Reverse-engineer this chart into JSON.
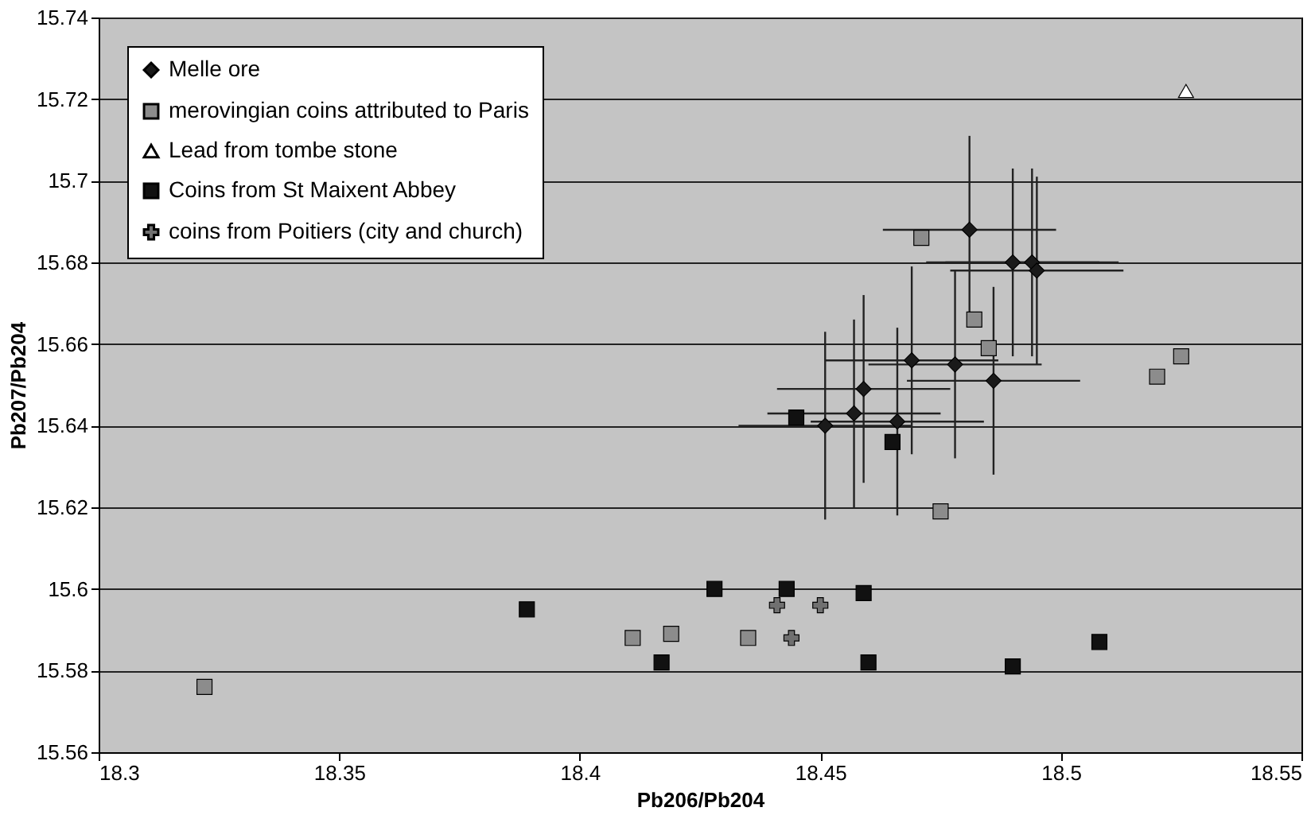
{
  "chart_data": {
    "type": "scatter",
    "xlabel": "Pb206/Pb204",
    "ylabel": "Pb207/Pb204",
    "xlim": [
      18.3,
      18.55
    ],
    "xticks": [
      18.3,
      18.35,
      18.4,
      18.45,
      18.5,
      18.55
    ],
    "ylim": [
      15.56,
      15.74
    ],
    "yticks": [
      15.56,
      15.58,
      15.6,
      15.62,
      15.64,
      15.66,
      15.68,
      15.7,
      15.72,
      15.74
    ],
    "grid": "y",
    "legend": "top left",
    "series": [
      {
        "name": "Melle ore",
        "color": "#1a1a1a",
        "marker": "diamond",
        "x": [
          18.481,
          18.49,
          18.494,
          18.495,
          18.469,
          18.478,
          18.459,
          18.486,
          18.457,
          18.451,
          18.466
        ],
        "values": [
          15.688,
          15.68,
          15.68,
          15.678,
          15.656,
          15.655,
          15.649,
          15.651,
          15.643,
          15.64,
          15.641
        ],
        "errors": [
          0.023,
          0.023,
          0.023,
          0.023,
          0.023,
          0.023,
          0.023,
          0.023,
          0.023,
          0.023,
          0.023
        ],
        "xerrors": [
          0.018,
          0.018,
          0.018,
          0.018,
          0.018,
          0.018,
          0.018,
          0.018,
          0.018,
          0.018,
          0.018
        ]
      },
      {
        "name": "merovingian coins attributed to Paris",
        "color": "#8c8c8c",
        "marker": "square",
        "x": [
          18.322,
          18.411,
          18.419,
          18.435,
          18.475,
          18.471,
          18.482,
          18.485,
          18.52,
          18.525
        ],
        "values": [
          15.576,
          15.588,
          15.589,
          15.588,
          15.619,
          15.686,
          15.666,
          15.659,
          15.652,
          15.657
        ]
      },
      {
        "name": "Lead from tombe stone",
        "color": "#ffffff",
        "marker": "triangle",
        "x": [
          18.526
        ],
        "values": [
          15.722
        ]
      },
      {
        "name": "Coins from St Maixent Abbey",
        "color": "#111111",
        "marker": "square",
        "x": [
          18.389,
          18.417,
          18.428,
          18.443,
          18.459,
          18.46,
          18.49,
          18.508,
          18.445,
          18.465
        ],
        "values": [
          15.595,
          15.582,
          15.6,
          15.6,
          15.599,
          15.582,
          15.581,
          15.587,
          15.642,
          15.636
        ]
      },
      {
        "name": "coins from Poitiers (city and church)",
        "color": "#707070",
        "marker": "cross",
        "x": [
          18.441,
          18.45,
          18.444
        ],
        "values": [
          15.596,
          15.596,
          15.588
        ]
      }
    ]
  }
}
